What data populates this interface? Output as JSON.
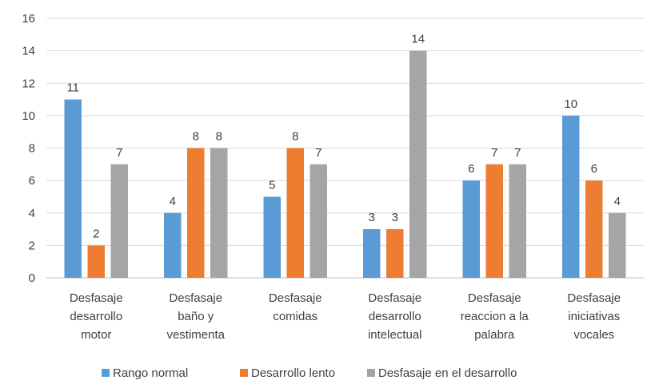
{
  "chart_data": {
    "type": "bar",
    "title": "",
    "xlabel": "",
    "ylabel": "",
    "ylim": [
      0,
      16
    ],
    "yticks": [
      "0",
      "2",
      "4",
      "6",
      "8",
      "10",
      "12",
      "14",
      "16"
    ],
    "grid": true,
    "legend_position": "bottom",
    "categories": [
      [
        "Desfasaje",
        "desarrollo",
        "motor"
      ],
      [
        "Desfasaje",
        "baño y",
        "vestimenta"
      ],
      [
        "Desfasaje",
        "comidas"
      ],
      [
        "Desfasaje",
        "desarrollo",
        "intelectual"
      ],
      [
        "Desfasaje",
        "reaccion a la",
        "palabra"
      ],
      [
        "Desfasaje",
        "iniciativas",
        "vocales"
      ]
    ],
    "series": [
      {
        "name": "Rango normal",
        "color": "#5B9BD5",
        "values": [
          11,
          4,
          5,
          3,
          6,
          10
        ]
      },
      {
        "name": "Desarrollo lento",
        "color": "#ED7D31",
        "values": [
          2,
          8,
          8,
          3,
          7,
          6
        ]
      },
      {
        "name": "Desfasaje en el desarrollo",
        "color": "#A5A5A5",
        "values": [
          7,
          8,
          7,
          14,
          7,
          4
        ]
      }
    ]
  }
}
